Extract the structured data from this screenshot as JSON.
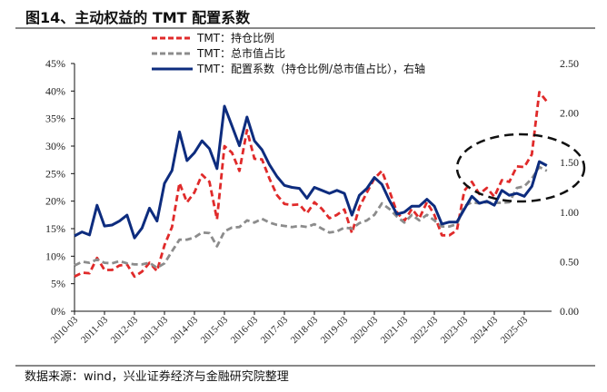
{
  "title": "图14、主动权益的 TMT 配置系数",
  "source": "数据来源：wind，兴业证券经济与金融研究院整理",
  "chart_data": {
    "type": "line",
    "title": "图14、主动权益的 TMT 配置系数",
    "legend_position": "top",
    "grid": false,
    "x_tick_labels": [
      "2010-03",
      "2011-03",
      "2012-03",
      "2013-03",
      "2014-03",
      "2015-03",
      "2016-03",
      "2017-03",
      "2018-03",
      "2019-03",
      "2020-03",
      "2021-03",
      "2022-03",
      "2023-03",
      "2024-03",
      "2025-03"
    ],
    "x_start": "2010-03",
    "x_frequency": "quarterly",
    "left_axis": {
      "ylim": [
        0,
        45
      ],
      "ticks": [
        "0%",
        "5%",
        "10%",
        "15%",
        "20%",
        "25%",
        "30%",
        "35%",
        "40%",
        "45%"
      ]
    },
    "right_axis": {
      "ylim": [
        0,
        2.5
      ],
      "ticks": [
        "0.00",
        "0.50",
        "1.00",
        "1.50",
        "2.00",
        "2.50"
      ]
    },
    "series": [
      {
        "name": "TMT：持仓比例",
        "axis": "left",
        "color": "#e02a2a",
        "style": "dashed",
        "values": [
          6.3,
          7.0,
          6.9,
          9.7,
          7.5,
          7.5,
          8.3,
          8.5,
          6.3,
          7.2,
          8.8,
          7.3,
          12.0,
          15.3,
          23.3,
          19.8,
          21.6,
          24.8,
          23.5,
          16.7,
          30.0,
          28.8,
          25.5,
          32.9,
          27.7,
          27.6,
          24.1,
          21.1,
          19.5,
          19.3,
          19.4,
          17.8,
          19.8,
          18.6,
          16.9,
          17.5,
          18.5,
          14.2,
          18.9,
          21.6,
          24.1,
          25.5,
          21.9,
          18.0,
          16.4,
          18.6,
          16.9,
          19.8,
          17.5,
          13.8,
          13.8,
          14.7,
          21.9,
          23.5,
          21.3,
          22.4,
          20.8,
          23.8,
          23.5,
          26.3,
          26.2,
          28.5,
          39.8,
          38.1
        ]
      },
      {
        "name": "TMT：总市值占比",
        "axis": "left",
        "color": "#8c8c8c",
        "style": "dashed",
        "values": [
          8.3,
          9.0,
          8.8,
          9.4,
          8.8,
          8.7,
          9.1,
          8.7,
          8.5,
          8.5,
          8.8,
          7.9,
          8.7,
          10.9,
          13.0,
          13.0,
          13.4,
          14.3,
          14.2,
          11.8,
          14.5,
          15.2,
          15.3,
          16.5,
          16.1,
          16.8,
          16.1,
          15.7,
          15.5,
          15.3,
          15.5,
          15.3,
          15.8,
          15.0,
          14.3,
          14.5,
          15.2,
          15.0,
          16.0,
          16.5,
          17.5,
          19.6,
          18.6,
          17.2,
          16.1,
          17.5,
          16.5,
          17.5,
          16.5,
          15.4,
          15.4,
          15.8,
          19.1,
          19.8,
          19.6,
          19.8,
          19.7,
          19.7,
          19.8,
          22.4,
          22.7,
          24.1,
          26.2,
          25.5
        ]
      },
      {
        "name": "TMT：配置系数（持仓比例/总市值占比），右轴",
        "axis": "right",
        "color": "#0d2c7e",
        "style": "solid",
        "values": [
          0.76,
          0.8,
          0.77,
          1.07,
          0.86,
          0.87,
          0.91,
          0.97,
          0.74,
          0.84,
          1.04,
          0.91,
          1.29,
          1.42,
          1.81,
          1.52,
          1.6,
          1.72,
          1.64,
          1.44,
          2.07,
          1.87,
          1.67,
          1.96,
          1.72,
          1.63,
          1.48,
          1.36,
          1.27,
          1.25,
          1.24,
          1.14,
          1.25,
          1.22,
          1.19,
          1.22,
          1.19,
          0.97,
          1.17,
          1.24,
          1.35,
          1.28,
          1.12,
          0.98,
          1.0,
          1.06,
          1.06,
          1.13,
          1.06,
          0.88,
          0.9,
          0.9,
          1.03,
          1.16,
          1.09,
          1.11,
          1.07,
          1.22,
          1.17,
          1.19,
          1.16,
          1.26,
          1.51,
          1.47
        ]
      }
    ],
    "annotation": "dashed-ellipse-highlighting-2023-2025"
  }
}
